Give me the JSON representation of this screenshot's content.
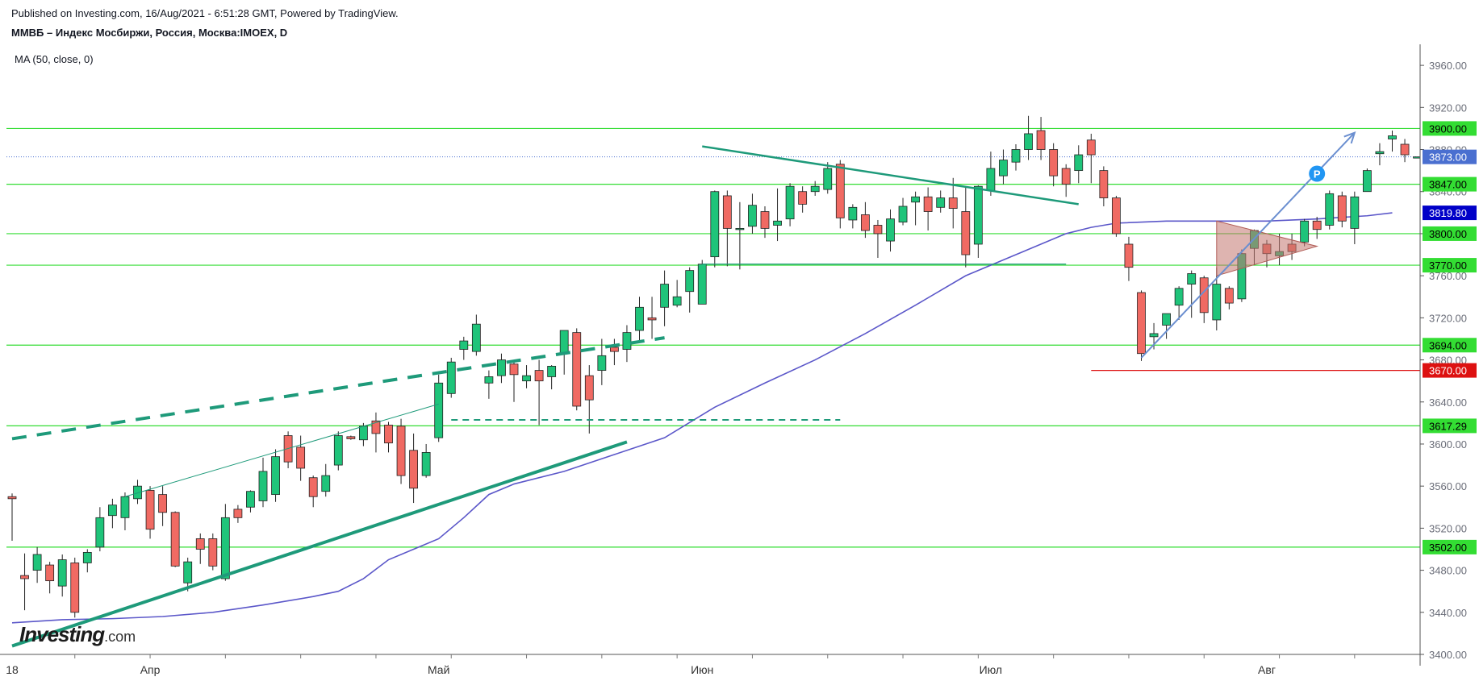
{
  "header": {
    "published": "Published on Investing.com, 16/Aug/2021 - 6:51:28 GMT, Powered by TradingView.",
    "title": "ММВБ – Индекс Мосбиржи, Россия, Москва:IMOEX, D",
    "indicator": "MA (50, close, 0)"
  },
  "logo": {
    "brand": "Investing",
    "suffix": ".com"
  },
  "colors": {
    "up": "#1fc47a",
    "down": "#f06a63",
    "level": "#33dd33",
    "trend": "#1e9a7a",
    "ma": "#5b57c9",
    "arrow": "#6b8fd0",
    "triangle": "#c2766f",
    "support": "#dd1111",
    "current": "#4a6fd0",
    "ma_label": "#0000c8"
  },
  "chart_data": {
    "type": "candlestick",
    "symbol": "IMOEX",
    "timeframe": "D",
    "ylim": [
      3400,
      3980
    ],
    "y_ticks": [
      3400,
      3440,
      3480,
      3520,
      3560,
      3600,
      3640,
      3680,
      3720,
      3760,
      3800,
      3840,
      3880,
      3920,
      3960
    ],
    "y_tick_labels": [
      "3400.00",
      "3440.00",
      "3480.00",
      "3520.00",
      "3560.00",
      "3600.00",
      "3640.00",
      "3680.00",
      "3720.00",
      "3760.00",
      "3800.00",
      "3840.00",
      "3880.00",
      "3920.00",
      "3960.00"
    ],
    "x_labels": [
      {
        "label": "18",
        "index": 0
      },
      {
        "label": "Апр",
        "index": 11
      },
      {
        "label": "Май",
        "index": 34
      },
      {
        "label": "Июн",
        "index": 55
      },
      {
        "label": "Июл",
        "index": 78
      },
      {
        "label": "Авг",
        "index": 100
      }
    ],
    "candles": [
      [
        3550,
        3548,
        3508,
        3553
      ],
      [
        3475,
        3472,
        3442,
        3496
      ],
      [
        3480,
        3495,
        3468,
        3502
      ],
      [
        3485,
        3470,
        3458,
        3488
      ],
      [
        3465,
        3490,
        3455,
        3495
      ],
      [
        3487,
        3440,
        3435,
        3492
      ],
      [
        3487,
        3497,
        3478,
        3500
      ],
      [
        3502,
        3530,
        3498,
        3540
      ],
      [
        3532,
        3542,
        3520,
        3548
      ],
      [
        3530,
        3550,
        3518,
        3554
      ],
      [
        3548,
        3560,
        3543,
        3566
      ],
      [
        3556,
        3519,
        3510,
        3560
      ],
      [
        3552,
        3535,
        3522,
        3560
      ],
      [
        3535,
        3484,
        3483,
        3536
      ],
      [
        3468,
        3488,
        3460,
        3492
      ],
      [
        3510,
        3500,
        3486,
        3515
      ],
      [
        3510,
        3484,
        3480,
        3515
      ],
      [
        3472,
        3530,
        3470,
        3543
      ],
      [
        3538,
        3530,
        3525,
        3542
      ],
      [
        3540,
        3555,
        3535,
        3556
      ],
      [
        3546,
        3574,
        3540,
        3587
      ],
      [
        3552,
        3588,
        3545,
        3595
      ],
      [
        3608,
        3583,
        3577,
        3612
      ],
      [
        3597,
        3577,
        3565,
        3608
      ],
      [
        3568,
        3550,
        3540,
        3570
      ],
      [
        3555,
        3570,
        3550,
        3581
      ],
      [
        3580,
        3608,
        3575,
        3612
      ],
      [
        3607,
        3605,
        3604,
        3608
      ],
      [
        3604,
        3617,
        3598,
        3620
      ],
      [
        3622,
        3610,
        3592,
        3630
      ],
      [
        3618,
        3601,
        3592,
        3621
      ],
      [
        3617,
        3570,
        3562,
        3624
      ],
      [
        3594,
        3558,
        3544,
        3610
      ],
      [
        3570,
        3592,
        3568,
        3600
      ],
      [
        3606,
        3658,
        3602,
        3666
      ],
      [
        3648,
        3678,
        3644,
        3682
      ],
      [
        3690,
        3698,
        3680,
        3702
      ],
      [
        3688,
        3714,
        3684,
        3723
      ],
      [
        3658,
        3664,
        3643,
        3670
      ],
      [
        3665,
        3680,
        3658,
        3686
      ],
      [
        3676,
        3666,
        3640,
        3680
      ],
      [
        3660,
        3665,
        3653,
        3675
      ],
      [
        3670,
        3660,
        3618,
        3680
      ],
      [
        3664,
        3674,
        3652,
        3675
      ],
      [
        3686,
        3708,
        3666,
        3706
      ],
      [
        3706,
        3636,
        3632,
        3710
      ],
      [
        3665,
        3642,
        3610,
        3675
      ],
      [
        3670,
        3684,
        3656,
        3700
      ],
      [
        3692,
        3688,
        3675,
        3700
      ],
      [
        3690,
        3706,
        3678,
        3713
      ],
      [
        3708,
        3730,
        3696,
        3740
      ],
      [
        3720,
        3718,
        3700,
        3740
      ],
      [
        3730,
        3752,
        3712,
        3765
      ],
      [
        3732,
        3740,
        3730,
        3756
      ],
      [
        3745,
        3765,
        3725,
        3768
      ],
      [
        3733,
        3771,
        3738,
        3775
      ],
      [
        3778,
        3840,
        3768,
        3841
      ],
      [
        3836,
        3805,
        3769,
        3841
      ],
      [
        3804,
        3805,
        3766,
        3830
      ],
      [
        3807,
        3827,
        3800,
        3838
      ],
      [
        3821,
        3805,
        3796,
        3826
      ],
      [
        3808,
        3812,
        3793,
        3843
      ],
      [
        3814,
        3845,
        3807,
        3848
      ],
      [
        3840,
        3828,
        3820,
        3845
      ],
      [
        3840,
        3845,
        3836,
        3850
      ],
      [
        3842,
        3862,
        3838,
        3868
      ],
      [
        3866,
        3815,
        3805,
        3870
      ],
      [
        3813,
        3825,
        3805,
        3828
      ],
      [
        3818,
        3803,
        3796,
        3830
      ],
      [
        3808,
        3800,
        3777,
        3813
      ],
      [
        3793,
        3814,
        3783,
        3823
      ],
      [
        3811,
        3826,
        3808,
        3834
      ],
      [
        3830,
        3835,
        3808,
        3840
      ],
      [
        3835,
        3821,
        3803,
        3844
      ],
      [
        3825,
        3834,
        3820,
        3841
      ],
      [
        3834,
        3824,
        3805,
        3853
      ],
      [
        3821,
        3780,
        3768,
        3844
      ],
      [
        3790,
        3845,
        3777,
        3846
      ],
      [
        3841,
        3862,
        3836,
        3878
      ],
      [
        3855,
        3870,
        3847,
        3880
      ],
      [
        3868,
        3880,
        3860,
        3885
      ],
      [
        3880,
        3895,
        3870,
        3912
      ],
      [
        3898,
        3880,
        3870,
        3911
      ],
      [
        3880,
        3855,
        3845,
        3886
      ],
      [
        3862,
        3847,
        3835,
        3866
      ],
      [
        3860,
        3875,
        3848,
        3884
      ],
      [
        3889,
        3875,
        3848,
        3895
      ],
      [
        3860,
        3834,
        3826,
        3864
      ],
      [
        3834,
        3800,
        3797,
        3836
      ],
      [
        3790,
        3768,
        3755,
        3797
      ],
      [
        3744,
        3686,
        3679,
        3746
      ],
      [
        3702,
        3705,
        3690,
        3715
      ],
      [
        3713,
        3724,
        3700,
        3723
      ],
      [
        3732,
        3748,
        3718,
        3750
      ],
      [
        3752,
        3762,
        3720,
        3765
      ],
      [
        3758,
        3725,
        3715,
        3760
      ],
      [
        3718,
        3752,
        3708,
        3768
      ],
      [
        3748,
        3734,
        3728,
        3750
      ],
      [
        3738,
        3781,
        3735,
        3785
      ],
      [
        3786,
        3803,
        3770,
        3804
      ],
      [
        3790,
        3781,
        3768,
        3794
      ],
      [
        3779,
        3783,
        3770,
        3800
      ],
      [
        3790,
        3783,
        3775,
        3800
      ],
      [
        3792,
        3812,
        3788,
        3814
      ],
      [
        3812,
        3804,
        3795,
        3816
      ],
      [
        3808,
        3838,
        3804,
        3841
      ],
      [
        3836,
        3812,
        3806,
        3840
      ],
      [
        3805,
        3835,
        3790,
        3840
      ],
      [
        3840,
        3860,
        3840,
        3862
      ],
      [
        3876,
        3878,
        3865,
        3886
      ],
      [
        3890,
        3893,
        3878,
        3898
      ],
      [
        3885,
        3875,
        3868,
        3890
      ],
      [
        3873,
        3873,
        3873,
        3873
      ]
    ],
    "ma50": [
      [
        0,
        3430
      ],
      [
        4,
        3433
      ],
      [
        8,
        3434
      ],
      [
        12,
        3436
      ],
      [
        16,
        3440
      ],
      [
        20,
        3447
      ],
      [
        24,
        3455
      ],
      [
        26,
        3460
      ],
      [
        28,
        3472
      ],
      [
        30,
        3490
      ],
      [
        32,
        3500
      ],
      [
        34,
        3510
      ],
      [
        36,
        3530
      ],
      [
        38,
        3552
      ],
      [
        40,
        3562
      ],
      [
        44,
        3574
      ],
      [
        48,
        3590
      ],
      [
        52,
        3606
      ],
      [
        56,
        3635
      ],
      [
        60,
        3658
      ],
      [
        64,
        3680
      ],
      [
        68,
        3705
      ],
      [
        72,
        3732
      ],
      [
        76,
        3760
      ],
      [
        80,
        3780
      ],
      [
        84,
        3800
      ],
      [
        86,
        3806
      ],
      [
        88,
        3810
      ],
      [
        92,
        3812
      ],
      [
        96,
        3812
      ],
      [
        100,
        3812
      ],
      [
        104,
        3814
      ],
      [
        108,
        3817
      ],
      [
        110,
        3819.8
      ]
    ],
    "levels": [
      {
        "value": 3900,
        "label": "3900.00",
        "color": "#33dd33"
      },
      {
        "value": 3847,
        "label": "3847.00",
        "color": "#33dd33"
      },
      {
        "value": 3800,
        "label": "3800.00",
        "color": "#33dd33"
      },
      {
        "value": 3770,
        "label": "3770.00",
        "color": "#33dd33"
      },
      {
        "value": 3694,
        "label": "3694.00",
        "color": "#33dd33"
      },
      {
        "value": 3617.29,
        "label": "3617.29",
        "color": "#33dd33"
      },
      {
        "value": 3502,
        "label": "3502.00",
        "color": "#33dd33"
      },
      {
        "value": 3670,
        "label": "3670.00",
        "color": "#dd1111"
      }
    ],
    "current_price": {
      "value": 3873,
      "label": "3873.00"
    },
    "ma_value": {
      "value": 3819.8,
      "label": "3819.80"
    },
    "drawings": {
      "trend_up": [
        [
          0,
          3408
        ],
        [
          49,
          3602
        ]
      ],
      "channel_dashed": [
        [
          0,
          3605
        ],
        [
          52,
          3701
        ]
      ],
      "channel_thin": [
        [
          9,
          3550
        ],
        [
          34,
          3638
        ]
      ],
      "short_dashed": [
        [
          35,
          3623
        ],
        [
          66,
          3623
        ]
      ],
      "resistance": [
        [
          55,
          3883
        ],
        [
          85,
          3828
        ]
      ],
      "flat_3770": [
        [
          55,
          3771
        ],
        [
          84,
          3771
        ]
      ],
      "arrow": [
        [
          90,
          3682
        ],
        [
          107,
          3896
        ]
      ],
      "triangle": [
        [
          96,
          3812
        ],
        [
          104,
          3788
        ],
        [
          96,
          3760
        ]
      ],
      "marker": {
        "index": 104,
        "value": 3857,
        "label": "P"
      }
    }
  }
}
